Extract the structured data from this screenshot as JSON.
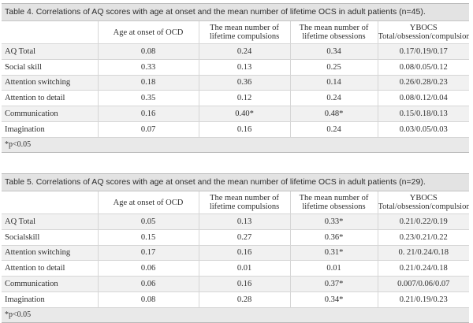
{
  "table4": {
    "caption": "Table 4. Correlations of AQ scores with age at onset and the mean number of lifetime OCS in adult patients (n=45).",
    "headers": {
      "age": "Age at onset of OCD",
      "comp1": "The mean number of",
      "comp2": "lifetime compulsions",
      "obs1": "The mean number of",
      "obs2": "lifetime obsessions",
      "yb1": "YBOCS",
      "yb2": "Total/obsession/compulsion"
    },
    "rows": [
      {
        "label": "AQ Total",
        "age": "0.08",
        "comp": "0.24",
        "obs": "0.34",
        "ybocs": "0.17/0.19/0.17"
      },
      {
        "label": "Social skill",
        "age": "0.33",
        "comp": "0.13",
        "obs": "0.25",
        "ybocs": "0.08/0.05/0.12"
      },
      {
        "label": "Attention switching",
        "age": "0.18",
        "comp": "0.36",
        "obs": "0.14",
        "ybocs": "0.26/0.28/0.23"
      },
      {
        "label": "Attention to detail",
        "age": "0.35",
        "comp": "0.12",
        "obs": "0.24",
        "ybocs": "0.08/0.12/0.04"
      },
      {
        "label": "Communication",
        "age": "0.16",
        "comp": "0.40*",
        "obs": "0.48*",
        "ybocs": "0.15/0.18/0.13"
      },
      {
        "label": "Imagination",
        "age": "0.07",
        "comp": "0.16",
        "obs": "0.24",
        "ybocs": "0.03/0.05/0.03"
      }
    ],
    "note": "*p<0.05"
  },
  "table5": {
    "caption": "Table 5. Correlations of AQ scores with age at onset and the mean number of lifetime OCS in adult patients (n=29).",
    "headers": {
      "age": "Age at onset of OCD",
      "comp1": "The mean number of",
      "comp2": "lifetime compulsions",
      "obs1": "The mean number of",
      "obs2": "lifetime obsessions",
      "yb1": "YBOCS",
      "yb2": "Total/obsession/compulsion"
    },
    "rows": [
      {
        "label": "AQ Total",
        "age": "0.05",
        "comp": "0.13",
        "obs": "0.33*",
        "ybocs": "0.21/0.22/0.19"
      },
      {
        "label": "Socialskill",
        "age": "0.15",
        "comp": "0.27",
        "obs": "0.36*",
        "ybocs": "0.23/0.21/0.22"
      },
      {
        "label": "Attention switching",
        "age": "0.17",
        "comp": "0.16",
        "obs": "0.31*",
        "ybocs": "0. 21/0.24/0.18"
      },
      {
        "label": "Attention to detail",
        "age": "0.06",
        "comp": "0.01",
        "obs": "0.01",
        "ybocs": "0.21/0.24/0.18"
      },
      {
        "label": "Communication",
        "age": "0.06",
        "comp": "0.16",
        "obs": "0.37*",
        "ybocs": "0.007/0.06/0.07"
      },
      {
        "label": "Imagination",
        "age": "0.08",
        "comp": "0.28",
        "obs": "0.34*",
        "ybocs": "0.21/0.19/0.23"
      }
    ],
    "note": "*p<0.05"
  }
}
